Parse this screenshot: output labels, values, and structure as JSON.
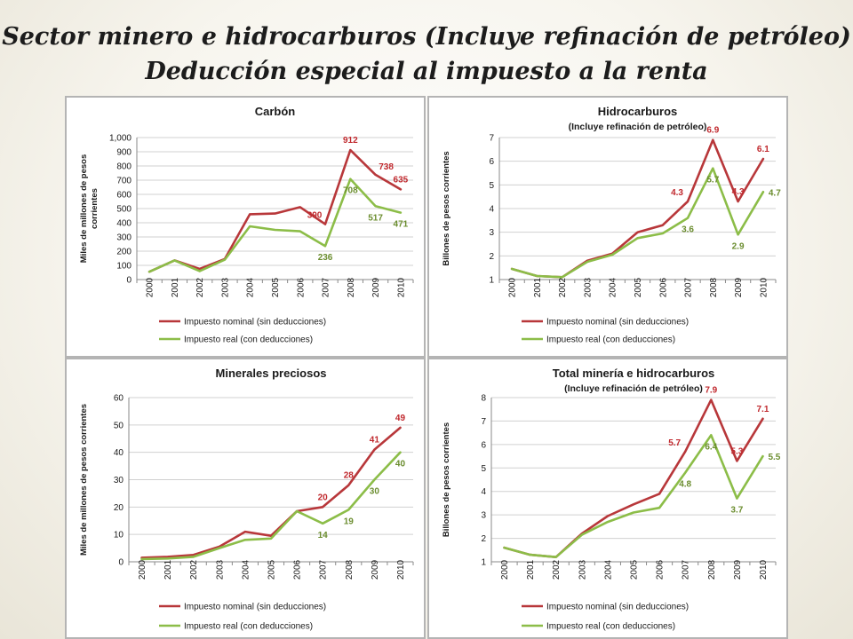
{
  "slide": {
    "title_line_1": "Sector minero e hidrocarburos (Incluye refinación de petróleo)",
    "title_line_2": "Deducción especial al impuesto a la renta"
  },
  "colors": {
    "nominal": "#b8373a",
    "real": "#8cbd48",
    "gridline": "#d0d0d0",
    "axis": "#8a8a8a",
    "text": "#1a1a1a",
    "nominal_label": "#c0282d",
    "real_label": "#6b8d2f"
  },
  "chart_data": [
    {
      "id": "carbon",
      "type": "line",
      "title": "Carbón",
      "subtitle": "",
      "ylabel": [
        "Miles de millones de pesos",
        "corrientes"
      ],
      "xlabel": "",
      "ylim": [
        0,
        1000
      ],
      "yticks": [
        0,
        100,
        200,
        300,
        400,
        500,
        600,
        700,
        800,
        900,
        1000
      ],
      "ytick_labels": [
        "0",
        "100",
        "200",
        "300",
        "400",
        "500",
        "600",
        "700",
        "800",
        "900",
        "1,000"
      ],
      "categories": [
        "2000",
        "2001",
        "2002",
        "2003",
        "2004",
        "2005",
        "2006",
        "2007",
        "2008",
        "2009",
        "2010"
      ],
      "legend_position": "bottom",
      "series": [
        {
          "name": "Impuesto nominal (sin deducciones)",
          "color_key": "nominal",
          "values": [
            55,
            135,
            75,
            145,
            460,
            465,
            510,
            390,
            912,
            738,
            635
          ]
        },
        {
          "name": "Impuesto real (con deducciones)",
          "color_key": "real",
          "values": [
            55,
            135,
            60,
            140,
            375,
            350,
            340,
            236,
            708,
            517,
            471
          ]
        }
      ],
      "data_labels": [
        {
          "series": 0,
          "index": 7,
          "text": "390",
          "position": "above-left"
        },
        {
          "series": 0,
          "index": 8,
          "text": "912",
          "position": "above"
        },
        {
          "series": 0,
          "index": 9,
          "text": "738",
          "position": "above-right"
        },
        {
          "series": 0,
          "index": 10,
          "text": "635",
          "position": "above"
        },
        {
          "series": 1,
          "index": 7,
          "text": "236",
          "position": "below"
        },
        {
          "series": 1,
          "index": 8,
          "text": "708",
          "position": "below"
        },
        {
          "series": 1,
          "index": 9,
          "text": "517",
          "position": "below"
        },
        {
          "series": 1,
          "index": 10,
          "text": "471",
          "position": "below"
        }
      ]
    },
    {
      "id": "hydro",
      "type": "line",
      "title": "Hidrocarburos",
      "subtitle": "(Incluye refinación de petróleo)",
      "ylabel": [
        "Billones de pesos corrientes"
      ],
      "xlabel": "",
      "ylim": [
        1,
        7
      ],
      "yticks": [
        1,
        2,
        3,
        4,
        5,
        6,
        7
      ],
      "ytick_labels": [
        "1",
        "2",
        "3",
        "4",
        "5",
        "6",
        "7"
      ],
      "categories": [
        "2000",
        "2001",
        "2002",
        "2003",
        "2004",
        "2005",
        "2006",
        "2007",
        "2008",
        "2009",
        "2010"
      ],
      "legend_position": "bottom",
      "series": [
        {
          "name": "Impuesto nominal (sin deducciones)",
          "color_key": "nominal",
          "values": [
            1.45,
            1.15,
            1.1,
            1.8,
            2.1,
            3.0,
            3.3,
            4.3,
            6.9,
            4.3,
            6.1
          ]
        },
        {
          "name": "Impuesto real (con deducciones)",
          "color_key": "real",
          "values": [
            1.45,
            1.15,
            1.1,
            1.75,
            2.05,
            2.75,
            2.95,
            3.6,
            5.7,
            2.9,
            4.7
          ]
        }
      ],
      "data_labels": [
        {
          "series": 0,
          "index": 7,
          "text": "4.3",
          "position": "above-left"
        },
        {
          "series": 0,
          "index": 8,
          "text": "6.9",
          "position": "above"
        },
        {
          "series": 0,
          "index": 9,
          "text": "4.3",
          "position": "above"
        },
        {
          "series": 0,
          "index": 10,
          "text": "6.1",
          "position": "above"
        },
        {
          "series": 1,
          "index": 7,
          "text": "3.6",
          "position": "below"
        },
        {
          "series": 1,
          "index": 8,
          "text": "5.7",
          "position": "below"
        },
        {
          "series": 1,
          "index": 9,
          "text": "2.9",
          "position": "below"
        },
        {
          "series": 1,
          "index": 10,
          "text": "4.7",
          "position": "right"
        }
      ]
    },
    {
      "id": "precious",
      "type": "line",
      "title": "Minerales preciosos",
      "subtitle": "",
      "ylabel": [
        "Miles de millones de pesos corrientes"
      ],
      "xlabel": "",
      "ylim": [
        0,
        60
      ],
      "yticks": [
        0,
        10,
        20,
        30,
        40,
        50,
        60
      ],
      "ytick_labels": [
        "0",
        "10",
        "20",
        "30",
        "40",
        "50",
        "60"
      ],
      "categories": [
        "2000",
        "2001",
        "2002",
        "2003",
        "2004",
        "2005",
        "2006",
        "2007",
        "2008",
        "2009",
        "2010"
      ],
      "legend_position": "bottom",
      "series": [
        {
          "name": "Impuesto nominal (sin deducciones)",
          "color_key": "nominal",
          "values": [
            1.5,
            1.8,
            2.5,
            5.5,
            11,
            9.5,
            18.5,
            20,
            28,
            41,
            49
          ]
        },
        {
          "name": "Impuesto real (con deducciones)",
          "color_key": "real",
          "values": [
            1.0,
            1.2,
            1.8,
            5.0,
            8.0,
            8.5,
            18.5,
            14,
            19,
            30,
            40
          ]
        }
      ],
      "data_labels": [
        {
          "series": 0,
          "index": 7,
          "text": "20",
          "position": "above"
        },
        {
          "series": 0,
          "index": 8,
          "text": "28",
          "position": "above"
        },
        {
          "series": 0,
          "index": 9,
          "text": "41",
          "position": "above"
        },
        {
          "series": 0,
          "index": 10,
          "text": "49",
          "position": "above"
        },
        {
          "series": 1,
          "index": 7,
          "text": "14",
          "position": "below"
        },
        {
          "series": 1,
          "index": 8,
          "text": "19",
          "position": "below"
        },
        {
          "series": 1,
          "index": 9,
          "text": "30",
          "position": "below"
        },
        {
          "series": 1,
          "index": 10,
          "text": "40",
          "position": "below"
        }
      ]
    },
    {
      "id": "total",
      "type": "line",
      "title": "Total minería e hidrocarburos",
      "subtitle": "(Incluye refinación de petróleo)",
      "ylabel": [
        "Billones de pesos corrientes"
      ],
      "xlabel": "",
      "ylim": [
        1,
        8
      ],
      "yticks": [
        1,
        2,
        3,
        4,
        5,
        6,
        7,
        8
      ],
      "ytick_labels": [
        "1",
        "2",
        "3",
        "4",
        "5",
        "6",
        "7",
        "8"
      ],
      "categories": [
        "2000",
        "2001",
        "2002",
        "2003",
        "2004",
        "2005",
        "2006",
        "2007",
        "2008",
        "2009",
        "2010"
      ],
      "legend_position": "bottom",
      "series": [
        {
          "name": "Impuesto nominal (sin deducciones)",
          "color_key": "nominal",
          "values": [
            1.6,
            1.3,
            1.2,
            2.2,
            2.95,
            3.45,
            3.9,
            5.7,
            7.9,
            5.3,
            7.1
          ]
        },
        {
          "name": "Impuesto real (con deducciones)",
          "color_key": "real",
          "values": [
            1.6,
            1.3,
            1.2,
            2.15,
            2.7,
            3.1,
            3.3,
            4.8,
            6.4,
            3.7,
            5.5
          ]
        }
      ],
      "data_labels": [
        {
          "series": 0,
          "index": 7,
          "text": "5.7",
          "position": "above-left"
        },
        {
          "series": 0,
          "index": 8,
          "text": "7.9",
          "position": "above"
        },
        {
          "series": 0,
          "index": 9,
          "text": "5.3",
          "position": "above"
        },
        {
          "series": 0,
          "index": 10,
          "text": "7.1",
          "position": "above"
        },
        {
          "series": 1,
          "index": 7,
          "text": "4.8",
          "position": "below"
        },
        {
          "series": 1,
          "index": 8,
          "text": "6.4",
          "position": "below"
        },
        {
          "series": 1,
          "index": 9,
          "text": "3.7",
          "position": "below"
        },
        {
          "series": 1,
          "index": 10,
          "text": "5.5",
          "position": "right"
        }
      ]
    }
  ]
}
